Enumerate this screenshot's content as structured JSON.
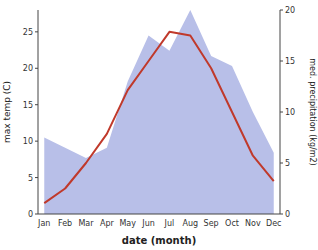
{
  "chart_data": {
    "type": "line",
    "categories": [
      "Jan",
      "Feb",
      "Mar",
      "Apr",
      "May",
      "Jun",
      "Jul",
      "Aug",
      "Sep",
      "Oct",
      "Nov",
      "Dec"
    ],
    "xlabel": "date (month)",
    "ylabel": "max temp (C)",
    "y2label": "med. precipitation (kg/m2)",
    "series": [
      {
        "type": "area",
        "axis": "y2",
        "color": "#b8bfe8",
        "values": [
          7.5,
          6.5,
          5.5,
          6.5,
          13.0,
          17.5,
          16.0,
          20.0,
          15.5,
          14.5,
          10.0,
          6.0
        ]
      },
      {
        "type": "line",
        "color": "#c0392b",
        "values": [
          1.5,
          3.5,
          7.0,
          11.0,
          17.0,
          21.0,
          25.0,
          24.5,
          20.0,
          14.0,
          8.0,
          4.5
        ]
      }
    ],
    "ylim": [
      0,
      28
    ],
    "yticks": [
      0,
      5,
      10,
      15,
      20,
      25
    ],
    "y2lim": [
      0,
      20
    ],
    "y2ticks": [
      0,
      5,
      10,
      15,
      20
    ],
    "grid": false
  }
}
